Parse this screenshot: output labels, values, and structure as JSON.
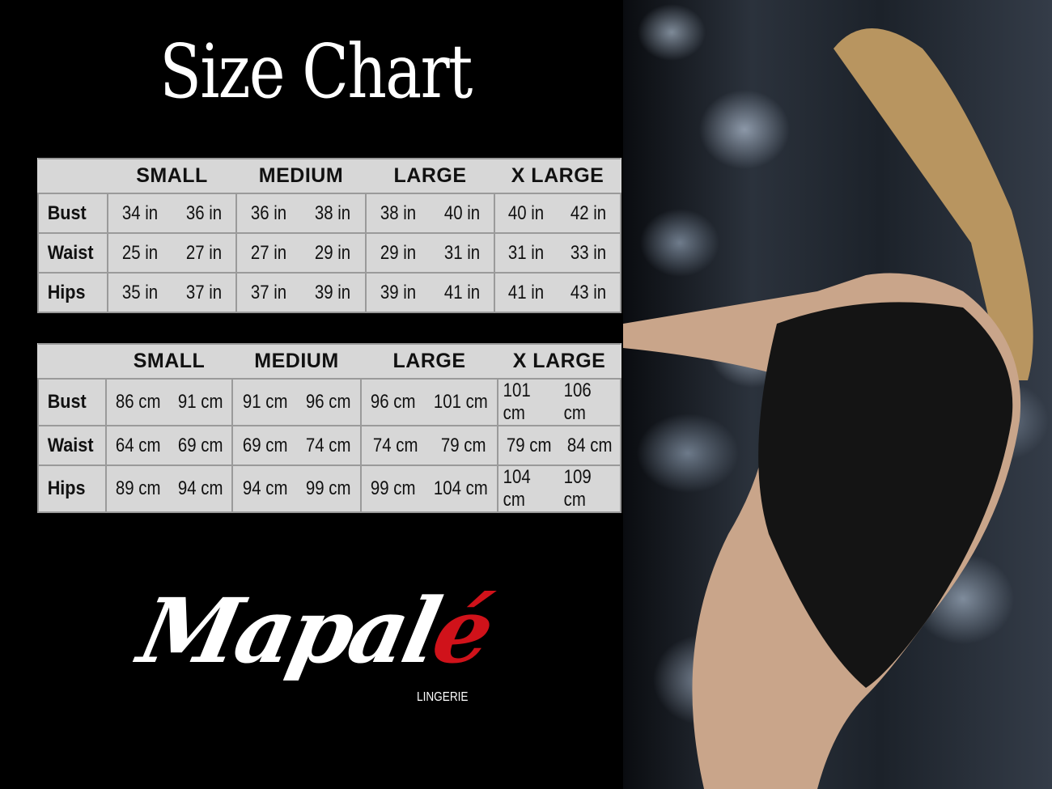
{
  "title": "Size Chart",
  "sizes": [
    "SMALL",
    "MEDIUM",
    "LARGE",
    "X LARGE"
  ],
  "inches_table": {
    "rows": [
      {
        "label": "Bust",
        "values": [
          "34 in",
          "36 in",
          "36 in",
          "38 in",
          "38 in",
          "40 in",
          "40 in",
          "42 in"
        ]
      },
      {
        "label": "Waist",
        "values": [
          "25 in",
          "27 in",
          "27 in",
          "29 in",
          "29 in",
          "31 in",
          "31 in",
          "33 in"
        ]
      },
      {
        "label": "Hips",
        "values": [
          "35 in",
          "37 in",
          "37 in",
          "39 in",
          "39 in",
          "41 in",
          "41 in",
          "43 in"
        ]
      }
    ]
  },
  "cm_table": {
    "rows": [
      {
        "label": "Bust",
        "values": [
          "86 cm",
          "91 cm",
          "91 cm",
          "96 cm",
          "96 cm",
          "101 cm",
          "101 cm",
          "106 cm"
        ]
      },
      {
        "label": "Waist",
        "values": [
          "64 cm",
          "69 cm",
          "69 cm",
          "74 cm",
          "74 cm",
          "79  cm",
          "79 cm",
          "84 cm"
        ]
      },
      {
        "label": "Hips",
        "values": [
          "89 cm",
          "94 cm",
          "94 cm",
          "99 cm",
          "99 cm",
          "104 cm",
          "104 cm",
          "109 cm"
        ]
      }
    ]
  },
  "brand": {
    "name_main": "Mapal",
    "name_accent": "é",
    "subtitle": "LINGERIE",
    "accent_color": "#d0121a"
  }
}
